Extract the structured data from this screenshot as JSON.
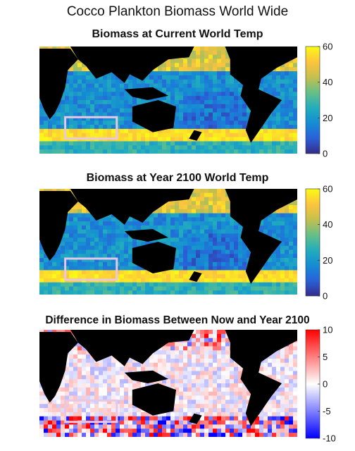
{
  "suptitle": "Cocco Plankton Biomass World Wide",
  "chart_data": [
    {
      "type": "heatmap",
      "title": "Biomass at Current World Temp",
      "colormap": "parula",
      "colorbar_ticks": [
        "0",
        "20",
        "40",
        "60"
      ],
      "clim": [
        0,
        60
      ],
      "highlight_box": "Southern Indian Ocean (pink rectangle)",
      "colors": {
        "box": "#e6c8e6",
        "land": "#000000"
      }
    },
    {
      "type": "heatmap",
      "title": "Biomass at Year 2100 World Temp",
      "colormap": "parula",
      "colorbar_ticks": [
        "0",
        "20",
        "40",
        "60"
      ],
      "clim": [
        0,
        60
      ],
      "highlight_box": "Southern Indian Ocean (pink rectangle)",
      "colors": {
        "box": "#e6c8e6",
        "land": "#000000"
      }
    },
    {
      "type": "heatmap",
      "title": "Difference in Biomass Between Now and Year 2100",
      "colormap": "blue-white-red",
      "colorbar_ticks": [
        "10",
        "5",
        "0",
        "-5",
        "-10"
      ],
      "clim": [
        -10,
        10
      ],
      "highlight_box": "Southern Indian Ocean (pink rectangle)",
      "colors": {
        "positive": "#ff0000",
        "negative": "#0000ff",
        "zero": "#ffffff",
        "land": "#000000"
      }
    }
  ]
}
